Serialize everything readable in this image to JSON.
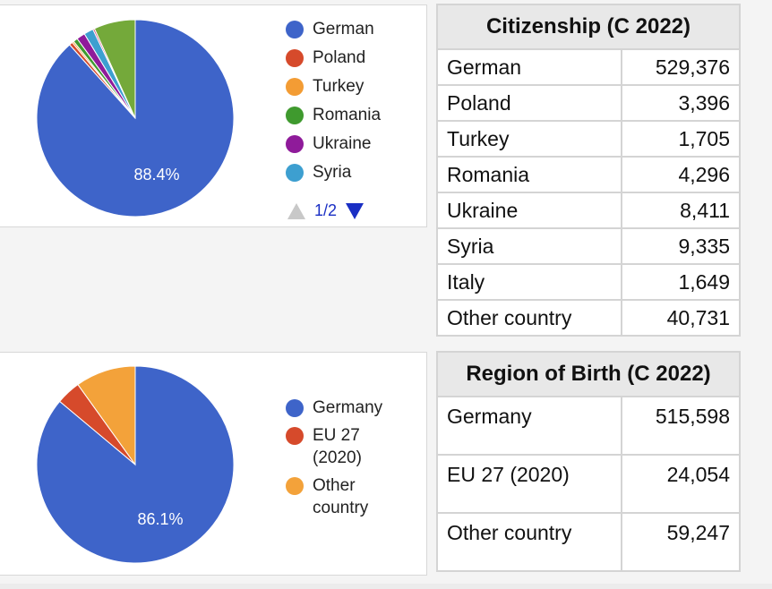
{
  "chart_data": [
    {
      "type": "pie",
      "legend": "right",
      "slices": [
        {
          "label": "German",
          "value": 529376,
          "color": "#3e64c9"
        },
        {
          "label": "Poland",
          "value": 3396,
          "color": "#d64a2b"
        },
        {
          "label": "Turkey",
          "value": 1705,
          "color": "#f39c34"
        },
        {
          "label": "Romania",
          "value": 4296,
          "color": "#3f9a2e"
        },
        {
          "label": "Ukraine",
          "value": 8411,
          "color": "#8f1b9a"
        },
        {
          "label": "Syria",
          "value": 9335,
          "color": "#3d9fd0"
        },
        {
          "label": "Italy",
          "value": 1649,
          "color": "#d64b7a"
        },
        {
          "label": "Other country",
          "value": 40731,
          "color": "#74a93a"
        }
      ],
      "slice_label": "88.4%",
      "legend_page": "1/2"
    },
    {
      "type": "pie",
      "legend": "right",
      "slices": [
        {
          "label": "Germany",
          "value": 515598,
          "color": "#3e64c9"
        },
        {
          "label": "EU 27 (2020)",
          "value": 24054,
          "color": "#d64a2b"
        },
        {
          "label": "Other country",
          "value": 59247,
          "color": "#f3a23a"
        }
      ],
      "slice_label": "86.1%"
    }
  ],
  "tables": [
    {
      "title": "Citizenship (C 2022)",
      "rows": [
        {
          "label": "German",
          "value": "529,376"
        },
        {
          "label": "Poland",
          "value": "3,396"
        },
        {
          "label": "Turkey",
          "value": "1,705"
        },
        {
          "label": "Romania",
          "value": "4,296"
        },
        {
          "label": "Ukraine",
          "value": "8,411"
        },
        {
          "label": "Syria",
          "value": "9,335"
        },
        {
          "label": "Italy",
          "value": "1,649"
        },
        {
          "label": "Other country",
          "value": "40,731"
        }
      ]
    },
    {
      "title": "Region of Birth (C 2022)",
      "rows": [
        {
          "label": "Germany",
          "value": "515,598"
        },
        {
          "label": "EU 27 (2020)",
          "value": "24,054"
        },
        {
          "label": "Other country",
          "value": "59,247"
        }
      ]
    }
  ]
}
